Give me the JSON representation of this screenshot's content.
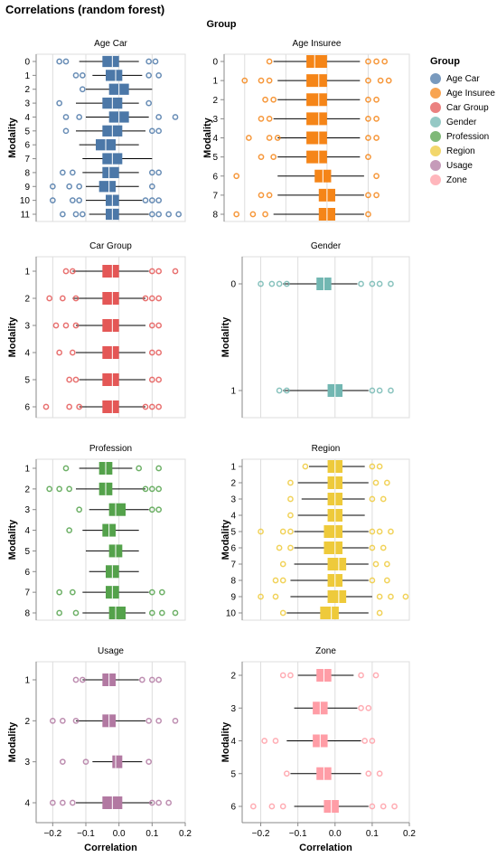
{
  "title": "Correlations (random forest)",
  "column_header": "Group",
  "legend": {
    "title": "Group",
    "items": [
      {
        "label": "Age Car",
        "color": "#4c78a8"
      },
      {
        "label": "Age Insuree",
        "color": "#f58518"
      },
      {
        "label": "Car Group",
        "color": "#e45756"
      },
      {
        "label": "Gender",
        "color": "#72b7b2"
      },
      {
        "label": "Profession",
        "color": "#54a24b"
      },
      {
        "label": "Region",
        "color": "#eeca3b"
      },
      {
        "label": "Usage",
        "color": "#b279a2"
      },
      {
        "label": "Zone",
        "color": "#ff9da6"
      }
    ]
  },
  "chart_data": {
    "type": "boxplot",
    "xlabel": "Correlation",
    "ylabel": "Modality",
    "xlim": [
      -0.25,
      0.2
    ],
    "xticks": [
      "−0.2",
      "−0.1",
      "0.0",
      "0.1",
      "0.2"
    ],
    "grid": true,
    "facets": [
      {
        "name": "Age Car",
        "color": "#4c78a8",
        "boxes": [
          {
            "modality": "0",
            "q1": -0.05,
            "median": -0.02,
            "q3": 0.0,
            "wmin": -0.12,
            "wmax": 0.06,
            "outliers": [
              -0.18,
              -0.16,
              0.09,
              0.11
            ]
          },
          {
            "modality": "1",
            "q1": -0.04,
            "median": -0.01,
            "q3": 0.01,
            "wmin": -0.08,
            "wmax": 0.07,
            "outliers": [
              -0.13,
              -0.11,
              0.09,
              0.12
            ]
          },
          {
            "modality": "2",
            "q1": -0.03,
            "median": 0.0,
            "q3": 0.03,
            "wmin": -0.1,
            "wmax": 0.1,
            "outliers": [
              -0.11
            ]
          },
          {
            "modality": "3",
            "q1": -0.05,
            "median": -0.02,
            "q3": 0.01,
            "wmin": -0.13,
            "wmax": 0.06,
            "outliers": [
              -0.18,
              0.09
            ]
          },
          {
            "modality": "4",
            "q1": -0.03,
            "median": 0.0,
            "q3": 0.03,
            "wmin": -0.1,
            "wmax": 0.09,
            "outliers": [
              -0.16,
              -0.12,
              0.12,
              0.17
            ]
          },
          {
            "modality": "5",
            "q1": -0.05,
            "median": -0.02,
            "q3": 0.01,
            "wmin": -0.13,
            "wmax": 0.08,
            "outliers": [
              -0.16,
              0.1,
              0.12
            ]
          },
          {
            "modality": "6",
            "q1": -0.07,
            "median": -0.04,
            "q3": -0.01,
            "wmin": -0.12,
            "wmax": 0.06,
            "outliers": []
          },
          {
            "modality": "7",
            "q1": -0.05,
            "median": -0.02,
            "q3": 0.01,
            "wmin": -0.11,
            "wmax": 0.1,
            "outliers": []
          },
          {
            "modality": "8",
            "q1": -0.05,
            "median": -0.03,
            "q3": 0.0,
            "wmin": -0.11,
            "wmax": 0.06,
            "outliers": [
              -0.17,
              -0.14,
              0.1,
              0.12
            ]
          },
          {
            "modality": "9",
            "q1": -0.06,
            "median": -0.03,
            "q3": -0.01,
            "wmin": -0.1,
            "wmax": 0.06,
            "outliers": [
              -0.2,
              -0.15,
              -0.12,
              0.1
            ]
          },
          {
            "modality": "10",
            "q1": -0.04,
            "median": -0.02,
            "q3": 0.0,
            "wmin": -0.1,
            "wmax": 0.07,
            "outliers": [
              -0.2,
              -0.14,
              -0.12,
              0.08,
              0.1,
              0.12
            ]
          },
          {
            "modality": "11",
            "q1": -0.04,
            "median": -0.02,
            "q3": 0.0,
            "wmin": -0.09,
            "wmax": 0.09,
            "outliers": [
              -0.17,
              -0.13,
              -0.11,
              0.1,
              0.12,
              0.15,
              0.18
            ]
          }
        ]
      },
      {
        "name": "Age Insuree",
        "color": "#f58518",
        "boxes": [
          {
            "modality": "0",
            "q1": -0.05,
            "median": -0.03,
            "q3": 0.0,
            "wmin": -0.13,
            "wmax": 0.08,
            "outliers": [
              -0.14,
              0.1,
              0.12,
              0.14
            ]
          },
          {
            "modality": "1",
            "q1": -0.05,
            "median": -0.02,
            "q3": 0.0,
            "wmin": -0.12,
            "wmax": 0.08,
            "outliers": [
              -0.2,
              -0.16,
              -0.14,
              0.1,
              0.13,
              0.15
            ]
          },
          {
            "modality": "2",
            "q1": -0.05,
            "median": -0.02,
            "q3": 0.0,
            "wmin": -0.12,
            "wmax": 0.08,
            "outliers": [
              -0.15,
              -0.13,
              0.1,
              0.12
            ]
          },
          {
            "modality": "3",
            "q1": -0.05,
            "median": -0.02,
            "q3": 0.0,
            "wmin": -0.13,
            "wmax": 0.08,
            "outliers": [
              -0.16,
              -0.14,
              0.1,
              0.12
            ]
          },
          {
            "modality": "4",
            "q1": -0.05,
            "median": -0.02,
            "q3": 0.0,
            "wmin": -0.12,
            "wmax": 0.08,
            "outliers": [
              -0.19,
              -0.14,
              -0.12,
              0.1,
              0.12
            ]
          },
          {
            "modality": "5",
            "q1": -0.05,
            "median": -0.02,
            "q3": 0.0,
            "wmin": -0.12,
            "wmax": 0.08,
            "outliers": [
              -0.16,
              -0.13,
              0.1
            ]
          },
          {
            "modality": "6",
            "q1": -0.03,
            "median": -0.01,
            "q3": 0.01,
            "wmin": -0.12,
            "wmax": 0.09,
            "outliers": [
              -0.22,
              0.12
            ]
          },
          {
            "modality": "7",
            "q1": -0.02,
            "median": 0.0,
            "q3": 0.02,
            "wmin": -0.12,
            "wmax": 0.09,
            "outliers": [
              -0.16,
              -0.14,
              0.1,
              0.12
            ]
          },
          {
            "modality": "8",
            "q1": -0.02,
            "median": 0.0,
            "q3": 0.02,
            "wmin": -0.13,
            "wmax": 0.09,
            "outliers": [
              -0.22,
              -0.18,
              -0.15,
              0.1
            ]
          }
        ]
      },
      {
        "name": "Car Group",
        "color": "#e45756",
        "boxes": [
          {
            "modality": "1",
            "q1": -0.05,
            "median": -0.02,
            "q3": 0.0,
            "wmin": -0.14,
            "wmax": 0.09,
            "outliers": [
              -0.16,
              -0.14,
              0.1,
              0.12,
              0.17
            ]
          },
          {
            "modality": "2",
            "q1": -0.05,
            "median": -0.02,
            "q3": 0.0,
            "wmin": -0.14,
            "wmax": 0.08,
            "outliers": [
              -0.21,
              -0.17,
              -0.13,
              0.08,
              0.1,
              0.12
            ]
          },
          {
            "modality": "3",
            "q1": -0.05,
            "median": -0.02,
            "q3": 0.0,
            "wmin": -0.13,
            "wmax": 0.08,
            "outliers": [
              -0.19,
              -0.16,
              -0.13,
              0.1,
              0.12
            ]
          },
          {
            "modality": "4",
            "q1": -0.05,
            "median": -0.02,
            "q3": 0.0,
            "wmin": -0.13,
            "wmax": 0.08,
            "outliers": [
              -0.18,
              -0.14,
              0.1,
              0.12
            ]
          },
          {
            "modality": "5",
            "q1": -0.05,
            "median": -0.02,
            "q3": 0.0,
            "wmin": -0.12,
            "wmax": 0.08,
            "outliers": [
              -0.15,
              -0.13,
              0.1,
              0.12
            ]
          },
          {
            "modality": "6",
            "q1": -0.05,
            "median": -0.02,
            "q3": 0.0,
            "wmin": -0.12,
            "wmax": 0.08,
            "outliers": [
              -0.22,
              -0.15,
              -0.12,
              0.08,
              0.1,
              0.12
            ]
          }
        ]
      },
      {
        "name": "Gender",
        "color": "#72b7b2",
        "boxes": [
          {
            "modality": "0",
            "q1": -0.05,
            "median": -0.03,
            "q3": -0.01,
            "wmin": -0.14,
            "wmax": 0.06,
            "outliers": [
              -0.2,
              -0.17,
              -0.15,
              -0.13,
              0.07,
              0.1,
              0.12,
              0.15
            ]
          },
          {
            "modality": "1",
            "q1": -0.02,
            "median": 0.0,
            "q3": 0.02,
            "wmin": -0.14,
            "wmax": 0.09,
            "outliers": [
              -0.15,
              -0.13,
              0.1,
              0.12,
              0.15
            ]
          }
        ]
      },
      {
        "name": "Profession",
        "color": "#54a24b",
        "boxes": [
          {
            "modality": "1",
            "q1": -0.06,
            "median": -0.04,
            "q3": -0.02,
            "wmin": -0.12,
            "wmax": 0.04,
            "outliers": [
              -0.16,
              0.06,
              0.12
            ]
          },
          {
            "modality": "2",
            "q1": -0.06,
            "median": -0.04,
            "q3": -0.02,
            "wmin": -0.13,
            "wmax": 0.08,
            "outliers": [
              -0.21,
              -0.18,
              -0.15,
              0.08,
              0.1,
              0.12
            ]
          },
          {
            "modality": "3",
            "q1": -0.03,
            "median": -0.01,
            "q3": 0.02,
            "wmin": -0.09,
            "wmax": 0.09,
            "outliers": [
              -0.12,
              0.1,
              0.12
            ]
          },
          {
            "modality": "4",
            "q1": -0.05,
            "median": -0.03,
            "q3": -0.01,
            "wmin": -0.11,
            "wmax": 0.06,
            "outliers": [
              -0.15
            ]
          },
          {
            "modality": "5",
            "q1": -0.03,
            "median": -0.01,
            "q3": 0.01,
            "wmin": -0.1,
            "wmax": 0.06,
            "outliers": []
          },
          {
            "modality": "6",
            "q1": -0.04,
            "median": -0.02,
            "q3": 0.0,
            "wmin": -0.09,
            "wmax": 0.06,
            "outliers": []
          },
          {
            "modality": "7",
            "q1": -0.04,
            "median": -0.02,
            "q3": 0.0,
            "wmin": -0.11,
            "wmax": 0.09,
            "outliers": [
              -0.18,
              -0.14,
              0.1,
              0.13
            ]
          },
          {
            "modality": "8",
            "q1": -0.03,
            "median": -0.01,
            "q3": 0.02,
            "wmin": -0.11,
            "wmax": 0.08,
            "outliers": [
              -0.18,
              -0.13,
              0.1,
              0.13,
              0.17
            ]
          }
        ]
      },
      {
        "name": "Region",
        "color": "#eeca3b",
        "boxes": [
          {
            "modality": "1",
            "q1": -0.02,
            "median": 0.0,
            "q3": 0.02,
            "wmin": -0.07,
            "wmax": 0.08,
            "outliers": [
              -0.08,
              0.1,
              0.12
            ]
          },
          {
            "modality": "2",
            "q1": -0.02,
            "median": 0.0,
            "q3": 0.02,
            "wmin": -0.1,
            "wmax": 0.09,
            "outliers": [
              -0.12,
              0.11,
              0.14
            ]
          },
          {
            "modality": "3",
            "q1": -0.02,
            "median": 0.0,
            "q3": 0.02,
            "wmin": -0.09,
            "wmax": 0.08,
            "outliers": [
              -0.12,
              0.1,
              0.13
            ]
          },
          {
            "modality": "4",
            "q1": -0.02,
            "median": 0.0,
            "q3": 0.02,
            "wmin": -0.1,
            "wmax": 0.08,
            "outliers": [
              -0.12
            ]
          },
          {
            "modality": "5",
            "q1": -0.03,
            "median": 0.0,
            "q3": 0.02,
            "wmin": -0.11,
            "wmax": 0.09,
            "outliers": [
              -0.2,
              -0.14,
              -0.12,
              0.1,
              0.12,
              0.15
            ]
          },
          {
            "modality": "6",
            "q1": -0.03,
            "median": 0.0,
            "q3": 0.02,
            "wmin": -0.11,
            "wmax": 0.09,
            "outliers": [
              -0.15,
              -0.12,
              0.1,
              0.13
            ]
          },
          {
            "modality": "7",
            "q1": -0.02,
            "median": 0.01,
            "q3": 0.03,
            "wmin": -0.11,
            "wmax": 0.09,
            "outliers": [
              -0.14,
              0.11,
              0.14
            ]
          },
          {
            "modality": "8",
            "q1": -0.02,
            "median": 0.0,
            "q3": 0.02,
            "wmin": -0.12,
            "wmax": 0.09,
            "outliers": [
              -0.16,
              -0.14,
              0.1,
              0.14
            ]
          },
          {
            "modality": "9",
            "q1": -0.02,
            "median": 0.01,
            "q3": 0.03,
            "wmin": -0.12,
            "wmax": 0.1,
            "outliers": [
              -0.2,
              -0.16,
              0.12,
              0.15,
              0.19
            ]
          },
          {
            "modality": "10",
            "q1": -0.04,
            "median": -0.01,
            "q3": 0.01,
            "wmin": -0.13,
            "wmax": 0.09,
            "outliers": [
              -0.14,
              0.12
            ]
          }
        ]
      },
      {
        "name": "Usage",
        "color": "#b279a2",
        "boxes": [
          {
            "modality": "1",
            "q1": -0.05,
            "median": -0.03,
            "q3": -0.01,
            "wmin": -0.11,
            "wmax": 0.06,
            "outliers": [
              -0.13,
              -0.11,
              0.07,
              0.1,
              0.12
            ]
          },
          {
            "modality": "2",
            "q1": -0.05,
            "median": -0.03,
            "q3": -0.01,
            "wmin": -0.13,
            "wmax": 0.08,
            "outliers": [
              -0.2,
              -0.17,
              -0.13,
              0.09,
              0.12,
              0.17
            ]
          },
          {
            "modality": "3",
            "q1": -0.02,
            "median": -0.01,
            "q3": 0.01,
            "wmin": -0.08,
            "wmax": 0.07,
            "outliers": [
              -0.17,
              -0.1,
              0.09
            ]
          },
          {
            "modality": "4",
            "q1": -0.05,
            "median": -0.02,
            "q3": 0.01,
            "wmin": -0.13,
            "wmax": 0.1,
            "outliers": [
              -0.2,
              -0.17,
              -0.14,
              0.1,
              0.12,
              0.15
            ]
          }
        ]
      },
      {
        "name": "Zone",
        "color": "#ff9da6",
        "boxes": [
          {
            "modality": "2",
            "q1": -0.05,
            "median": -0.03,
            "q3": -0.01,
            "wmin": -0.1,
            "wmax": 0.05,
            "outliers": [
              -0.14,
              -0.12,
              0.07,
              0.11
            ]
          },
          {
            "modality": "3",
            "q1": -0.06,
            "median": -0.04,
            "q3": -0.02,
            "wmin": -0.11,
            "wmax": 0.06,
            "outliers": [
              0.07,
              0.09
            ]
          },
          {
            "modality": "4",
            "q1": -0.06,
            "median": -0.04,
            "q3": -0.02,
            "wmin": -0.13,
            "wmax": 0.07,
            "outliers": [
              -0.19,
              -0.16,
              0.08,
              0.1
            ]
          },
          {
            "modality": "5",
            "q1": -0.05,
            "median": -0.03,
            "q3": -0.01,
            "wmin": -0.12,
            "wmax": 0.07,
            "outliers": [
              -0.13,
              0.09,
              0.12
            ]
          },
          {
            "modality": "6",
            "q1": -0.03,
            "median": -0.01,
            "q3": 0.01,
            "wmin": -0.11,
            "wmax": 0.09,
            "outliers": [
              -0.22,
              -0.17,
              -0.14,
              0.1,
              0.13,
              0.16
            ]
          }
        ]
      }
    ]
  }
}
